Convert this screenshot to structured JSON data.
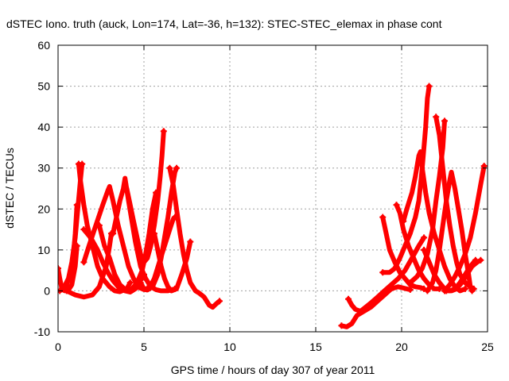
{
  "chart_data": {
    "type": "scatter",
    "title": "dSTEC Iono. truth (auck, Lon=174, Lat=-36, h=132): STEC-STEC_elemax in phase cont",
    "xlabel": "GPS time / hours of day 307 of year 2011",
    "ylabel": "dSTEC  / TECUs",
    "xlim": [
      0,
      25
    ],
    "ylim": [
      -10,
      60
    ],
    "xticks": [
      "0",
      "5",
      "10",
      "15",
      "20",
      "25"
    ],
    "yticks": [
      "-10",
      "0",
      "10",
      "20",
      "30",
      "40",
      "50",
      "60"
    ],
    "grid": true,
    "legend": "none",
    "marker": "plus",
    "color": "#ff0000",
    "series": [
      {
        "points": [
          [
            0.0,
            5.5
          ],
          [
            0.1,
            3
          ],
          [
            0.2,
            1
          ],
          [
            0.3,
            0.2
          ],
          [
            0.4,
            0
          ],
          [
            0.6,
            0.2
          ],
          [
            0.8,
            1.5
          ],
          [
            1.0,
            6
          ],
          [
            1.1,
            11
          ]
        ]
      },
      {
        "points": [
          [
            0.1,
            0
          ],
          [
            0.3,
            0.5
          ],
          [
            0.5,
            1.5
          ],
          [
            0.7,
            4
          ],
          [
            0.9,
            9
          ],
          [
            1.0,
            14
          ],
          [
            1.1,
            21
          ]
        ]
      },
      {
        "points": [
          [
            0.3,
            0.5
          ],
          [
            0.6,
            3
          ],
          [
            0.8,
            7
          ],
          [
            1.0,
            13
          ],
          [
            1.15,
            20
          ],
          [
            1.3,
            27
          ],
          [
            1.4,
            31
          ]
        ]
      },
      {
        "points": [
          [
            1.2,
            31
          ],
          [
            1.3,
            27
          ],
          [
            1.5,
            21
          ],
          [
            1.7,
            16
          ],
          [
            2.0,
            11
          ],
          [
            2.3,
            6
          ],
          [
            2.6,
            3
          ],
          [
            3.0,
            1
          ],
          [
            3.3,
            0
          ],
          [
            3.6,
            -0.2
          ],
          [
            4.0,
            0.5
          ],
          [
            4.2,
            2
          ]
        ]
      },
      {
        "points": [
          [
            0.5,
            0
          ],
          [
            1.0,
            -1
          ],
          [
            1.5,
            -1.5
          ],
          [
            2.0,
            -1
          ],
          [
            2.4,
            1
          ],
          [
            2.8,
            6
          ],
          [
            3.0,
            11
          ],
          [
            3.1,
            14
          ]
        ]
      },
      {
        "points": [
          [
            1.5,
            7
          ],
          [
            1.8,
            11
          ],
          [
            2.2,
            16
          ],
          [
            2.6,
            21
          ],
          [
            2.9,
            24.5
          ],
          [
            3.0,
            25.5
          ],
          [
            3.2,
            22
          ],
          [
            3.5,
            16
          ],
          [
            3.8,
            11
          ],
          [
            4.1,
            6
          ],
          [
            4.4,
            3
          ],
          [
            4.7,
            1
          ],
          [
            5.0,
            0.3
          ],
          [
            5.2,
            0.6
          ]
        ]
      },
      {
        "points": [
          [
            1.5,
            15
          ],
          [
            1.9,
            13
          ],
          [
            2.3,
            10
          ],
          [
            2.6,
            7
          ],
          [
            2.9,
            4.5
          ],
          [
            3.2,
            2.5
          ],
          [
            3.5,
            1
          ],
          [
            3.9,
            0
          ],
          [
            4.2,
            -0.3
          ],
          [
            4.5,
            0.5
          ],
          [
            4.8,
            2.5
          ],
          [
            5.0,
            4
          ]
        ]
      },
      {
        "points": [
          [
            2.4,
            16
          ],
          [
            2.7,
            11
          ],
          [
            3.0,
            8
          ],
          [
            3.3,
            4
          ],
          [
            3.6,
            1.5
          ],
          [
            4.0,
            0
          ],
          [
            4.3,
            0.5
          ],
          [
            4.6,
            2
          ],
          [
            4.9,
            5
          ],
          [
            5.1,
            9
          ],
          [
            5.3,
            14
          ],
          [
            5.5,
            20
          ],
          [
            5.7,
            24
          ]
        ]
      },
      {
        "points": [
          [
            3.2,
            14
          ],
          [
            3.4,
            18
          ],
          [
            3.6,
            22
          ],
          [
            3.8,
            25
          ],
          [
            3.9,
            27.5
          ],
          [
            4.1,
            22
          ],
          [
            4.3,
            17
          ],
          [
            4.5,
            12
          ],
          [
            4.8,
            6
          ],
          [
            5.1,
            3
          ],
          [
            5.4,
            1
          ],
          [
            5.7,
            0.3
          ],
          [
            6.0,
            0
          ],
          [
            6.4,
            0
          ],
          [
            6.8,
            0.5
          ]
        ]
      },
      {
        "points": [
          [
            3.9,
            26
          ],
          [
            4.0,
            25
          ],
          [
            4.2,
            21
          ],
          [
            4.4,
            17
          ],
          [
            4.6,
            13
          ],
          [
            4.8,
            9
          ],
          [
            5.0,
            7
          ],
          [
            5.2,
            8
          ],
          [
            5.4,
            11
          ],
          [
            5.6,
            16
          ],
          [
            5.8,
            22
          ],
          [
            5.95,
            28
          ],
          [
            6.05,
            33
          ],
          [
            6.15,
            39
          ]
        ]
      },
      {
        "points": [
          [
            4.6,
            1
          ],
          [
            4.9,
            0.5
          ],
          [
            5.2,
            0.2
          ],
          [
            5.5,
            1
          ],
          [
            5.8,
            4
          ],
          [
            6.0,
            8
          ],
          [
            6.2,
            13
          ],
          [
            6.4,
            18
          ],
          [
            6.6,
            24
          ],
          [
            6.8,
            29
          ],
          [
            6.9,
            30
          ]
        ]
      },
      {
        "points": [
          [
            4.8,
            2
          ],
          [
            5.0,
            0.5
          ],
          [
            5.3,
            0.5
          ],
          [
            5.6,
            3
          ],
          [
            5.9,
            7
          ],
          [
            6.2,
            11
          ],
          [
            6.5,
            15
          ],
          [
            6.7,
            17.5
          ],
          [
            6.8,
            18
          ]
        ]
      },
      {
        "points": [
          [
            5.6,
            14
          ],
          [
            5.8,
            10
          ],
          [
            6.0,
            6
          ],
          [
            6.2,
            3
          ],
          [
            6.4,
            1
          ],
          [
            6.6,
            0
          ],
          [
            6.9,
            0.5
          ],
          [
            7.2,
            4
          ],
          [
            7.5,
            8
          ],
          [
            7.7,
            12
          ]
        ]
      },
      {
        "points": [
          [
            6.5,
            30
          ],
          [
            6.7,
            26
          ],
          [
            6.9,
            20
          ],
          [
            7.1,
            14
          ],
          [
            7.3,
            9
          ],
          [
            7.5,
            5
          ],
          [
            7.7,
            2
          ],
          [
            8.0,
            0
          ],
          [
            8.2,
            -0.5
          ],
          [
            8.5,
            -1.5
          ],
          [
            8.8,
            -3.5
          ],
          [
            9.0,
            -4
          ],
          [
            9.2,
            -3.2
          ],
          [
            9.4,
            -2.5
          ]
        ]
      },
      {
        "points": [
          [
            16.5,
            -8.5
          ],
          [
            16.8,
            -8.8
          ],
          [
            17.1,
            -8
          ],
          [
            17.4,
            -6
          ],
          [
            17.8,
            -5
          ],
          [
            18.2,
            -4
          ],
          [
            18.6,
            -2.5
          ],
          [
            19.0,
            -1
          ],
          [
            19.4,
            0.5
          ],
          [
            19.8,
            1
          ],
          [
            20.0,
            0.8
          ],
          [
            20.3,
            0.5
          ],
          [
            20.5,
            0.3
          ]
        ]
      },
      {
        "points": [
          [
            16.9,
            -2
          ],
          [
            17.1,
            -3.5
          ],
          [
            17.3,
            -4.5
          ],
          [
            17.6,
            -5
          ],
          [
            17.9,
            -4
          ],
          [
            18.2,
            -3
          ],
          [
            18.6,
            -1.5
          ],
          [
            19.0,
            0
          ],
          [
            19.4,
            1.5
          ],
          [
            19.8,
            3
          ],
          [
            20.2,
            5
          ],
          [
            20.6,
            8
          ],
          [
            21.0,
            11
          ],
          [
            21.3,
            13
          ]
        ]
      },
      {
        "points": [
          [
            18.9,
            18
          ],
          [
            19.1,
            14
          ],
          [
            19.3,
            10
          ],
          [
            19.6,
            7
          ],
          [
            19.9,
            4.5
          ],
          [
            20.2,
            3
          ],
          [
            20.5,
            1.5
          ],
          [
            20.8,
            1
          ],
          [
            21.1,
            0.8
          ],
          [
            21.3,
            0.5
          ]
        ]
      },
      {
        "points": [
          [
            18.9,
            4.5
          ],
          [
            19.3,
            4.5
          ],
          [
            19.6,
            5.5
          ],
          [
            19.9,
            8
          ],
          [
            20.2,
            11
          ],
          [
            20.5,
            14
          ],
          [
            20.8,
            18
          ],
          [
            21.0,
            22
          ],
          [
            21.2,
            30
          ],
          [
            21.4,
            40
          ],
          [
            21.5,
            47
          ],
          [
            21.6,
            50
          ]
        ]
      },
      {
        "points": [
          [
            19.7,
            21
          ],
          [
            19.9,
            19
          ],
          [
            20.1,
            15
          ],
          [
            20.4,
            11
          ],
          [
            20.7,
            8
          ],
          [
            21.0,
            5
          ],
          [
            21.3,
            3
          ],
          [
            21.6,
            1.5
          ],
          [
            21.9,
            0.5
          ],
          [
            22.2,
            0.5
          ]
        ]
      },
      {
        "points": [
          [
            20.5,
            2
          ],
          [
            20.9,
            3.5
          ],
          [
            21.2,
            5.5
          ],
          [
            21.5,
            9
          ],
          [
            21.8,
            15
          ],
          [
            22.0,
            22
          ],
          [
            22.2,
            28
          ],
          [
            22.4,
            35
          ],
          [
            22.5,
            41.5
          ]
        ]
      },
      {
        "points": [
          [
            20.1,
            17
          ],
          [
            20.3,
            20
          ],
          [
            20.6,
            24
          ],
          [
            20.8,
            28
          ],
          [
            21.0,
            33
          ],
          [
            21.1,
            34
          ],
          [
            21.2,
            30
          ],
          [
            21.4,
            24
          ],
          [
            21.6,
            19
          ],
          [
            21.9,
            14
          ],
          [
            22.2,
            10
          ],
          [
            22.5,
            6
          ],
          [
            22.8,
            3
          ],
          [
            23.1,
            1
          ],
          [
            23.4,
            0
          ],
          [
            23.7,
            0.5
          ]
        ]
      },
      {
        "points": [
          [
            21.5,
            0
          ],
          [
            21.8,
            2
          ],
          [
            22.0,
            5
          ],
          [
            22.2,
            10
          ],
          [
            22.4,
            16
          ],
          [
            22.6,
            22
          ],
          [
            22.8,
            27
          ],
          [
            22.9,
            29
          ],
          [
            23.1,
            25
          ],
          [
            23.3,
            20
          ],
          [
            23.5,
            15
          ],
          [
            23.7,
            9
          ],
          [
            23.9,
            4
          ],
          [
            24.0,
            1
          ],
          [
            24.1,
            0
          ]
        ]
      },
      {
        "points": [
          [
            22.0,
            42.5
          ],
          [
            22.2,
            38
          ],
          [
            22.4,
            30
          ],
          [
            22.6,
            22
          ],
          [
            22.8,
            16
          ],
          [
            23.0,
            11
          ],
          [
            23.2,
            7
          ],
          [
            23.4,
            4
          ],
          [
            23.7,
            2
          ],
          [
            24.0,
            1
          ],
          [
            24.2,
            0.5
          ]
        ]
      },
      {
        "points": [
          [
            22.5,
            0
          ],
          [
            22.8,
            1.5
          ],
          [
            23.1,
            3.5
          ],
          [
            23.4,
            6
          ],
          [
            23.7,
            9
          ],
          [
            24.0,
            13
          ],
          [
            24.3,
            19
          ],
          [
            24.6,
            26
          ],
          [
            24.8,
            30.5
          ]
        ]
      },
      {
        "points": [
          [
            21.3,
            10
          ],
          [
            21.6,
            7
          ],
          [
            21.9,
            4
          ],
          [
            22.2,
            2
          ],
          [
            22.5,
            0.5
          ],
          [
            22.8,
            0
          ],
          [
            23.1,
            0.5
          ],
          [
            23.4,
            2
          ],
          [
            23.7,
            4
          ],
          [
            24.0,
            6
          ],
          [
            24.3,
            7.5
          ]
        ]
      },
      {
        "points": [
          [
            22.6,
            0
          ],
          [
            22.9,
            0
          ],
          [
            23.2,
            0.5
          ],
          [
            23.5,
            2
          ],
          [
            23.8,
            4
          ],
          [
            24.1,
            6
          ],
          [
            24.4,
            7
          ],
          [
            24.6,
            7.5
          ]
        ]
      }
    ]
  }
}
